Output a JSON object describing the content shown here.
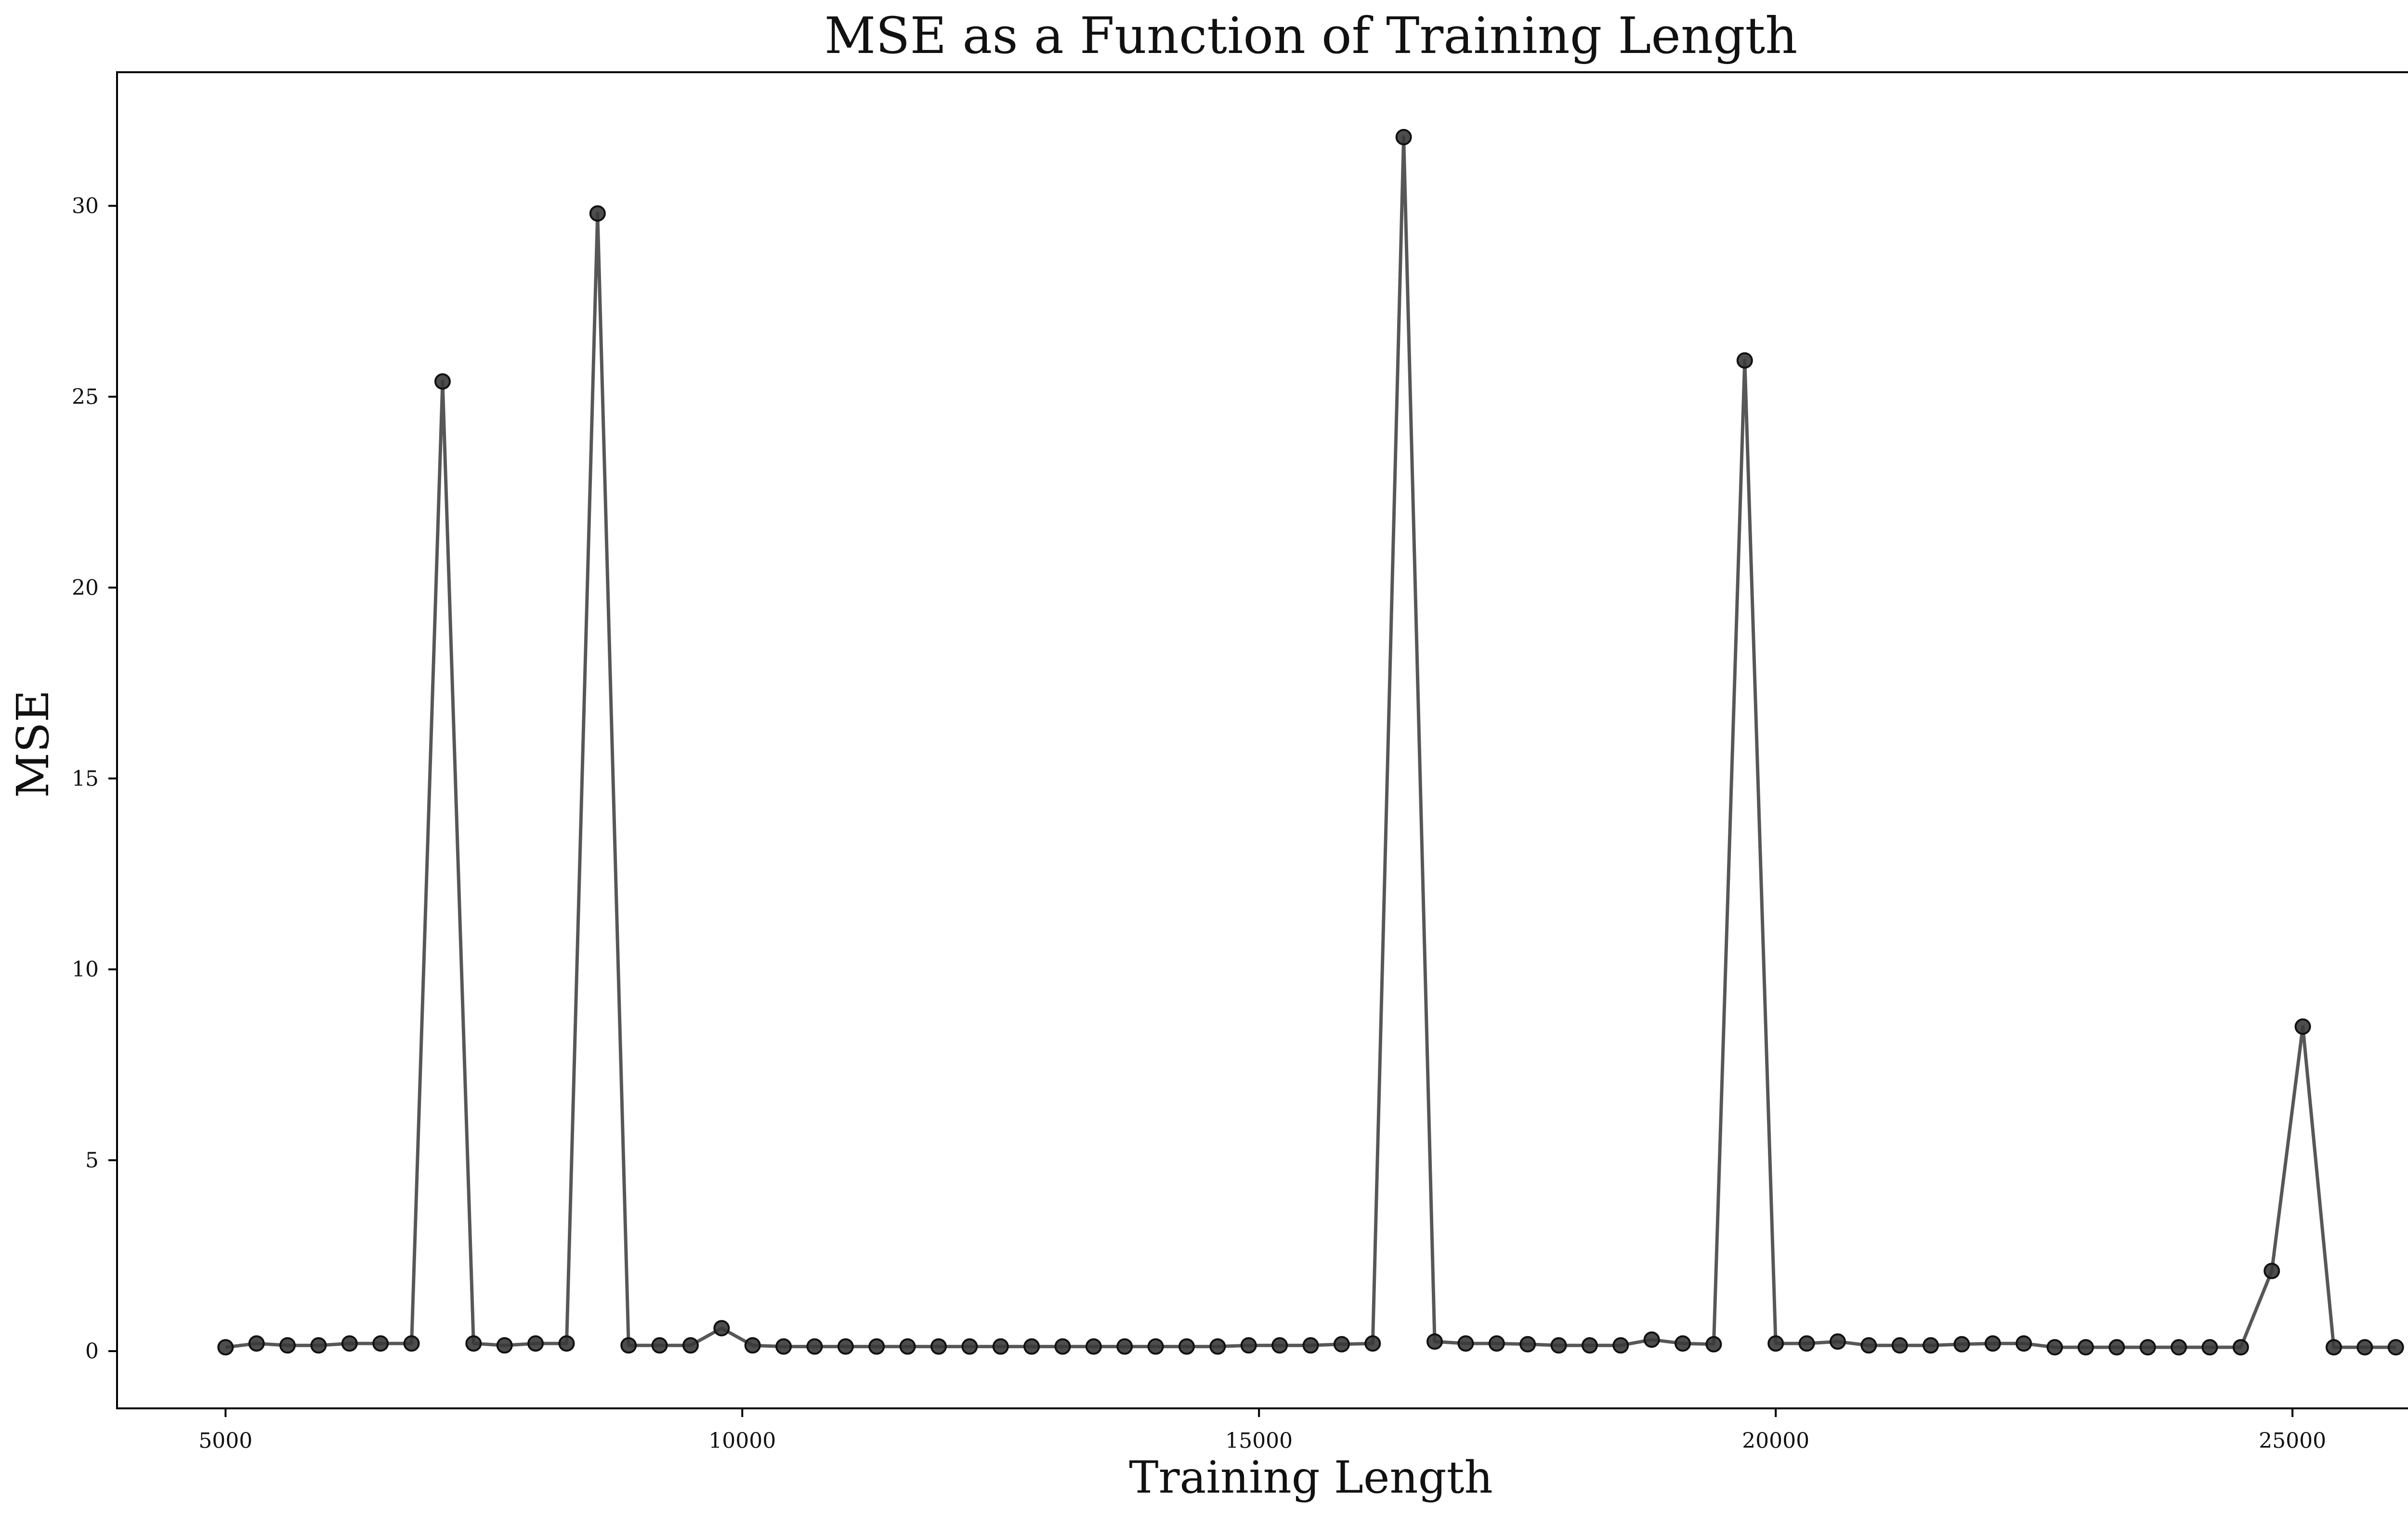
{
  "chart_data": {
    "type": "line",
    "title": "MSE as a Function of Training Length",
    "xlabel": "Training Length",
    "ylabel": "MSE",
    "xlim": [
      3950,
      27050
    ],
    "ylim": [
      -1.5,
      33.5
    ],
    "xticks": [
      5000,
      10000,
      15000,
      20000,
      25000
    ],
    "yticks": [
      0,
      5,
      10,
      15,
      20,
      25,
      30
    ],
    "xtick_labels": [
      "5000",
      "10000",
      "15000",
      "20000",
      "25000"
    ],
    "ytick_labels": [
      "0",
      "5",
      "10",
      "15",
      "20",
      "25",
      "30"
    ],
    "grid": false,
    "legend": "none",
    "series": [
      {
        "color": "#3a3a3a",
        "x": [
          5000,
          5300,
          5600,
          5900,
          6200,
          6500,
          6800,
          7100,
          7400,
          7700,
          8000,
          8300,
          8600,
          8900,
          9200,
          9500,
          9800,
          10100,
          10400,
          10700,
          11000,
          11300,
          11600,
          11900,
          12200,
          12500,
          12800,
          13100,
          13400,
          13700,
          14000,
          14300,
          14600,
          14900,
          15200,
          15500,
          15800,
          16100,
          16400,
          16700,
          17000,
          17300,
          17600,
          17900,
          18200,
          18500,
          18800,
          19100,
          19400,
          19700,
          20000,
          20300,
          20600,
          20900,
          21200,
          21500,
          21800,
          22100,
          22400,
          22700,
          23000,
          23300,
          23600,
          23900,
          24200,
          24500,
          24800,
          25100,
          25400,
          25700,
          26000
        ],
        "y": [
          0.1,
          0.2,
          0.15,
          0.15,
          0.2,
          0.2,
          0.2,
          25.4,
          0.2,
          0.15,
          0.2,
          0.2,
          29.8,
          0.15,
          0.15,
          0.15,
          0.6,
          0.15,
          0.12,
          0.12,
          0.12,
          0.12,
          0.12,
          0.12,
          0.12,
          0.12,
          0.12,
          0.12,
          0.12,
          0.12,
          0.12,
          0.12,
          0.12,
          0.15,
          0.15,
          0.15,
          0.18,
          0.2,
          31.8,
          0.25,
          0.2,
          0.2,
          0.18,
          0.15,
          0.15,
          0.15,
          0.3,
          0.2,
          0.18,
          25.95,
          0.2,
          0.2,
          0.25,
          0.15,
          0.15,
          0.15,
          0.18,
          0.2,
          0.2,
          0.1,
          0.1,
          0.1,
          0.1,
          0.1,
          0.1,
          0.1,
          2.1,
          8.5,
          0.1,
          0.1,
          0.1
        ]
      }
    ]
  }
}
